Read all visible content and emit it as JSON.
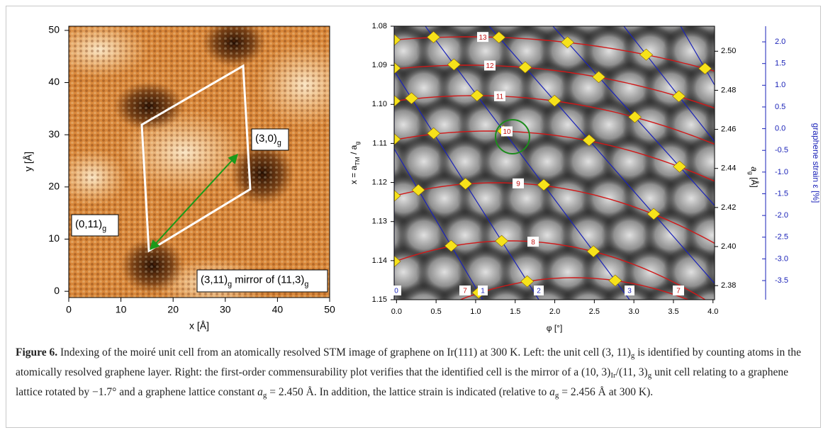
{
  "left": {
    "xlabel": "x [Å]",
    "ylabel": "y [Å]",
    "xlim": [
      0,
      50
    ],
    "ylim": [
      -1.2,
      50.8
    ],
    "xticks": [
      0,
      10,
      20,
      30,
      40,
      50
    ],
    "yticks": [
      0,
      10,
      20,
      30,
      40,
      50
    ],
    "annotations": [
      [
        "(3,0)",
        "g"
      ],
      [
        "(0,11)",
        "g"
      ],
      [
        "(3,11)",
        "g",
        " mirror of (11,3)",
        "g"
      ]
    ]
  },
  "right": {
    "xlabel": "φ [°]",
    "ylabel": [
      "x = a",
      "TM",
      " / a",
      "g"
    ],
    "y2label": [
      "a",
      "g",
      " [Å]"
    ],
    "y3label": "graphene strain ε [%]",
    "xlim": [
      -0.03,
      4.02
    ],
    "xticks": [
      {
        "value": 0,
        "label": "0.0"
      },
      0.5,
      {
        "value": 1,
        "label": "1.0"
      },
      1.5,
      {
        "value": 2,
        "label": "2.0"
      },
      2.5,
      {
        "value": 3,
        "label": "3.0"
      },
      3.5,
      {
        "value": 4,
        "label": "4.0"
      }
    ],
    "ylim": [
      1.08,
      1.15
    ],
    "yticks": [
      1.08,
      1.09,
      {
        "value": 1.1,
        "label": "1.10"
      },
      1.11,
      1.12,
      1.13,
      1.14,
      {
        "value": 1.15,
        "label": "1.15"
      }
    ],
    "y2lim": [
      2.3728,
      2.5128
    ],
    "y2ticks": [
      2.38,
      {
        "value": 2.4,
        "label": "2.40"
      },
      2.42,
      2.44,
      2.46,
      2.48,
      {
        "value": 2.5,
        "label": "2.50"
      }
    ],
    "y3lim": [
      -3.94,
      2.36
    ],
    "y3ticks": [
      {
        "value": 2,
        "label": "2.0"
      },
      1.5,
      {
        "value": 1,
        "label": "1.0"
      },
      0.5,
      {
        "value": 0,
        "label": "0.0"
      },
      -0.5,
      {
        "value": -1,
        "label": "-1.0"
      },
      -1.5,
      {
        "value": -2,
        "label": "-2.0"
      },
      -2.5,
      {
        "value": -3,
        "label": "-3.0"
      },
      -3.5
    ],
    "arc_labels": [
      "13",
      "12",
      "11",
      "10",
      "9",
      "8",
      "7",
      "7"
    ],
    "line_labels": [
      "0",
      "1",
      "2",
      "3"
    ]
  },
  "caption": {
    "segments": [
      "Figure 6.",
      " Indexing of the moiré unit cell from an atomically resolved STM image of graphene on Ir(111) at 300 K. Left: the unit cell (3, 11)",
      "g",
      " is identified by counting atoms in the atomically resolved graphene layer. Right: the first-order commensurability plot verifies that the identified cell is the mirror of a (10, 3)",
      "Ir",
      "/(11, 3)",
      "g",
      " unit cell relating to a graphene lattice rotated by −1.7° and a graphene lattice constant ",
      "a",
      "g",
      " = 2.450 Å. In addition, the lattice strain is indicated (relative to ",
      "a",
      "g",
      " = 2.456 Å at 300 K)."
    ]
  }
}
